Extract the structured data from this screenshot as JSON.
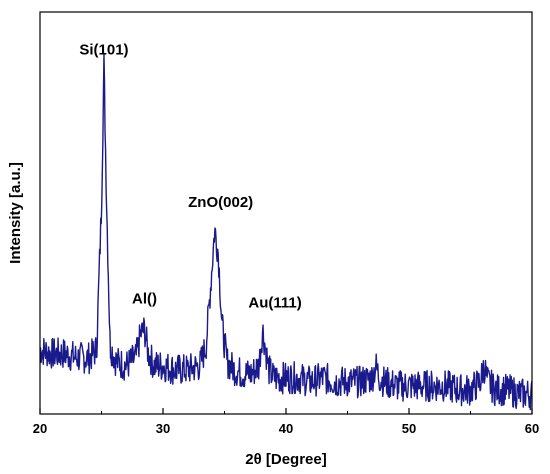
{
  "chart_data": {
    "type": "line",
    "title": "",
    "xlabel": "2θ [Degree]",
    "ylabel": "Intensity [a.u.]",
    "xlim": [
      20,
      60
    ],
    "ylim": [
      0,
      100
    ],
    "x_ticks": [
      20,
      30,
      40,
      50,
      60
    ],
    "x_tick_labels": [
      "20",
      "30",
      "40",
      "50",
      "60"
    ],
    "grid": false,
    "legend": "none",
    "line_color": "#1a1a8c",
    "series": [
      {
        "x": [
          20,
          21,
          22,
          23,
          24,
          24.6,
          25.0,
          25.2,
          25.4,
          25.7,
          26.2,
          27,
          27.8,
          28.2,
          28.5,
          28.8,
          29.3,
          30,
          31,
          32,
          33,
          33.5,
          33.9,
          34.2,
          34.5,
          34.8,
          35.2,
          35.8,
          36.5,
          37.2,
          37.8,
          38.1,
          38.3,
          38.6,
          39,
          40,
          41,
          42,
          43,
          44,
          45,
          46,
          47,
          47.3,
          47.6,
          48,
          49,
          50,
          51,
          52,
          53,
          54,
          55,
          55.8,
          56.1,
          56.4,
          57,
          58,
          59,
          60
        ],
        "y": [
          16,
          15,
          15,
          14,
          14,
          16,
          52,
          87,
          55,
          17,
          13,
          12,
          14,
          20,
          21,
          15,
          12,
          12,
          11,
          11,
          12,
          17,
          33,
          46,
          40,
          22,
          13,
          11,
          10,
          10,
          12,
          21,
          17,
          11,
          9,
          9,
          9,
          8,
          9,
          8,
          8,
          8,
          9,
          12,
          9,
          8,
          7,
          7,
          7,
          7,
          7,
          6,
          6,
          8,
          12,
          8,
          6,
          6,
          5,
          5
        ]
      }
    ],
    "annotations": [
      {
        "text": "Si(101)",
        "x": 25.2,
        "y": 87
      },
      {
        "text": "Al()",
        "x": 28.5,
        "y": 21
      },
      {
        "text": "ZnO(002)",
        "x": 34.2,
        "y": 46
      },
      {
        "text": "Au(111)",
        "x": 38.3,
        "y": 21
      }
    ]
  }
}
